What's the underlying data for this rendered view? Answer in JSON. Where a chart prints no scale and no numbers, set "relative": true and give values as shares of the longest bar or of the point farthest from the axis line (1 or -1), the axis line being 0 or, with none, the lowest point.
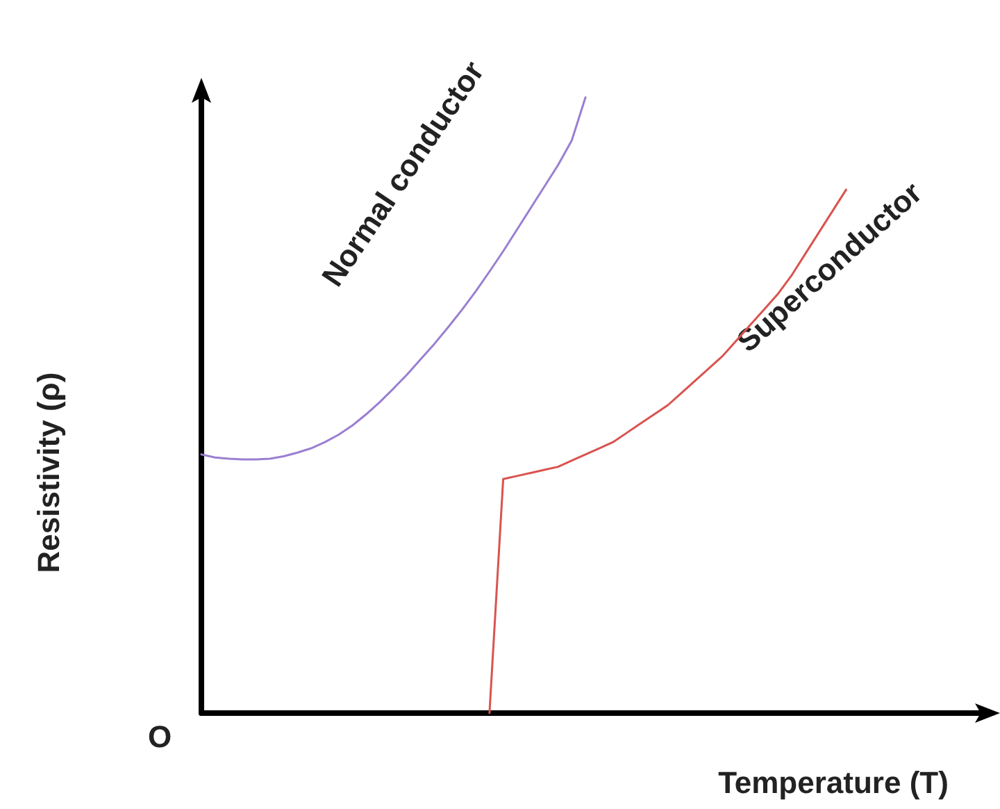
{
  "chart_data": {
    "type": "line",
    "relative": true,
    "xlabel": "Temperature (T)",
    "ylabel": "Resistivity (ρ)",
    "annotations": [
      "O"
    ],
    "categories": [
      null,
      null,
      null,
      null,
      null,
      null,
      null,
      null,
      null,
      null,
      null,
      null,
      null,
      null,
      null,
      null,
      null,
      null,
      null,
      null,
      null,
      null,
      null,
      null,
      null,
      null,
      null,
      null,
      null,
      null,
      null,
      null,
      null,
      null,
      null,
      null,
      null,
      null,
      null,
      null,
      null,
      null,
      null,
      null,
      null,
      null,
      null,
      null,
      null,
      null,
      null,
      null,
      null,
      null,
      null,
      null,
      null,
      null
    ],
    "series": [
      {
        "name": "Normal conductor",
        "color": "#9a7fd1",
        "values": [
          0.42,
          0.415,
          0.413,
          0.412,
          0.412,
          0.413,
          0.417,
          0.423,
          0.43,
          0.44,
          0.452,
          0.467,
          0.485,
          0.505,
          0.527,
          0.55,
          0.575,
          0.6,
          0.627,
          0.655,
          0.685,
          0.717,
          0.75,
          0.785,
          0.82,
          0.855,
          0.89,
          0.93,
          1.0,
          null,
          null,
          null,
          null,
          null,
          null,
          null,
          null,
          null,
          null,
          null,
          null,
          null,
          null,
          null,
          null,
          null,
          null,
          null,
          null,
          null,
          null,
          null,
          null,
          null,
          null,
          null,
          null,
          null
        ]
      },
      {
        "name": "Superconductor",
        "color": "#d9534f",
        "values": [
          null,
          null,
          null,
          null,
          null,
          null,
          null,
          null,
          null,
          null,
          null,
          null,
          null,
          null,
          null,
          null,
          null,
          null,
          null,
          null,
          null,
          0,
          0.38,
          0.385,
          0.39,
          0.395,
          0.4,
          0.41,
          0.42,
          0.43,
          0.44,
          0.455,
          0.47,
          0.485,
          0.5,
          0.52,
          0.54,
          0.56,
          0.58,
          0.605,
          0.63,
          0.655,
          0.68,
          0.71,
          0.745,
          0.78,
          0.815,
          0.85,
          null,
          null,
          null,
          null,
          null,
          null,
          null,
          null,
          null,
          null
        ]
      }
    ]
  }
}
